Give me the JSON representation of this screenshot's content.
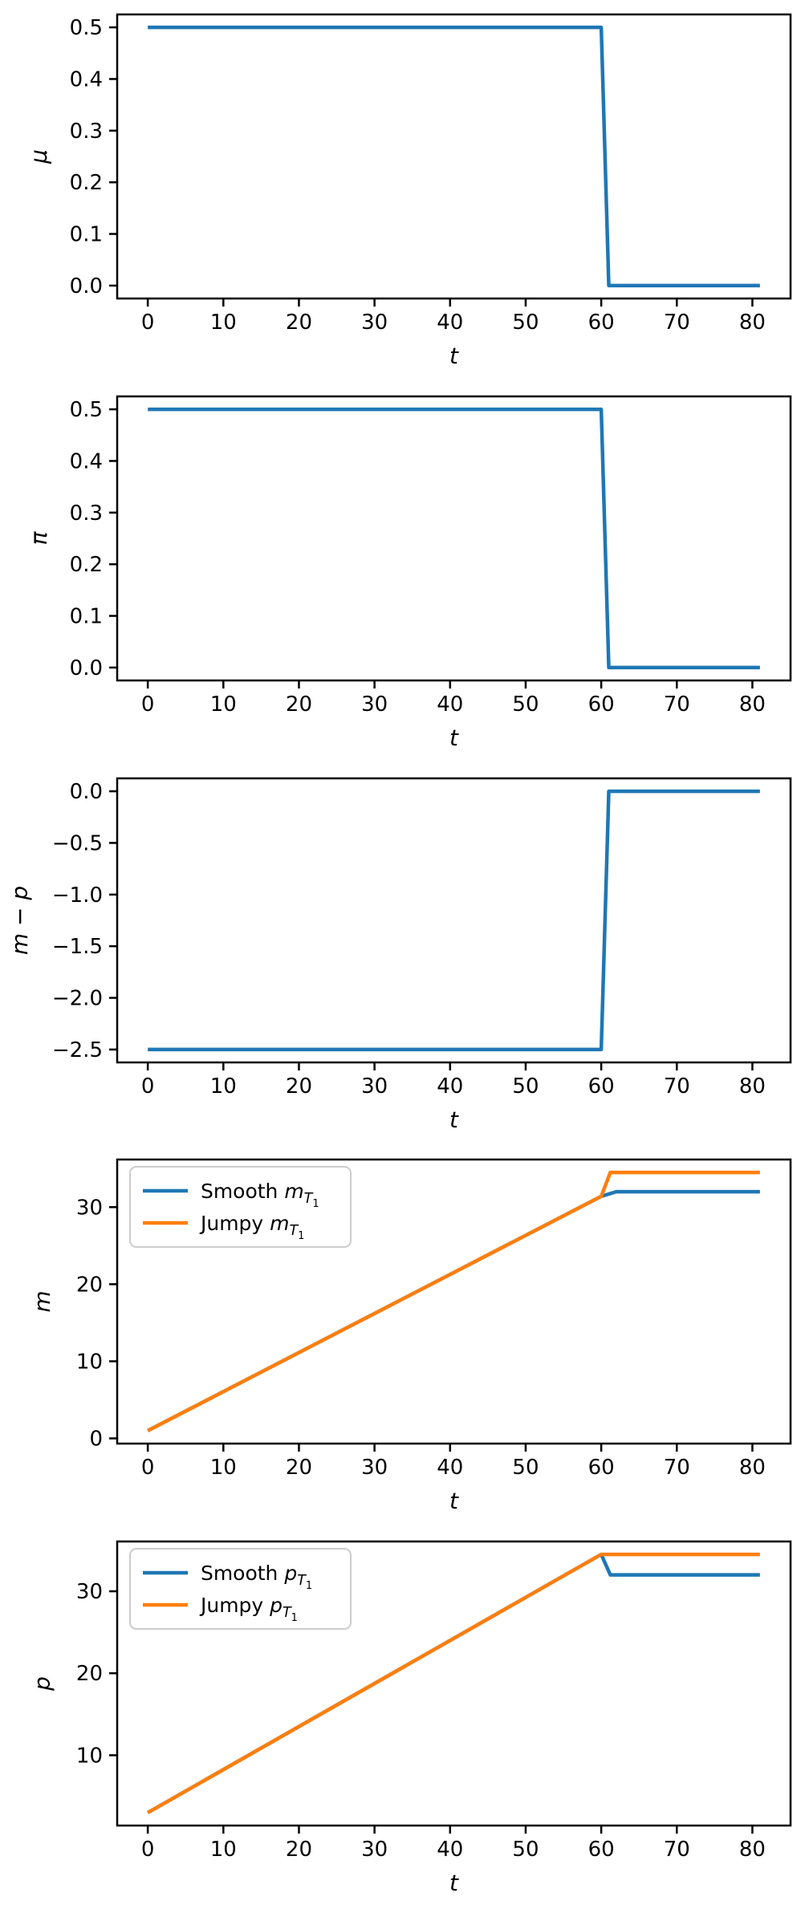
{
  "page": {
    "background": "#ffffff"
  },
  "palette": {
    "blue": "#1f77b4",
    "orange": "#ff7f0e",
    "axis": "#000000",
    "legend_frame": "#cccccc",
    "legend_background": "#ffffff"
  },
  "chart_data": [
    {
      "name": "mu-plot",
      "type": "line",
      "title": "",
      "xlabel": "t",
      "ylabel": "μ",
      "xlim": [
        -4.05,
        85.05
      ],
      "ylim": [
        -0.025,
        0.525
      ],
      "xticks": [
        0,
        10,
        20,
        30,
        40,
        50,
        60,
        70,
        80
      ],
      "xtick_labels": [
        "0",
        "10",
        "20",
        "30",
        "40",
        "50",
        "60",
        "70",
        "80"
      ],
      "yticks": [
        0.0,
        0.1,
        0.2,
        0.3,
        0.4,
        0.5
      ],
      "ytick_labels": [
        "0.0",
        "0.1",
        "0.2",
        "0.3",
        "0.4",
        "0.5"
      ],
      "grid": false,
      "legend": null,
      "series": [
        {
          "name": "mu",
          "label": null,
          "color": "#1f77b4",
          "x": [
            0,
            60,
            61,
            81
          ],
          "y": [
            0.5,
            0.5,
            0.0,
            0.0
          ]
        }
      ]
    },
    {
      "name": "pi-plot",
      "type": "line",
      "title": "",
      "xlabel": "t",
      "ylabel": "π",
      "xlim": [
        -4.05,
        85.05
      ],
      "ylim": [
        -0.025,
        0.525
      ],
      "xticks": [
        0,
        10,
        20,
        30,
        40,
        50,
        60,
        70,
        80
      ],
      "xtick_labels": [
        "0",
        "10",
        "20",
        "30",
        "40",
        "50",
        "60",
        "70",
        "80"
      ],
      "yticks": [
        0.0,
        0.1,
        0.2,
        0.3,
        0.4,
        0.5
      ],
      "ytick_labels": [
        "0.0",
        "0.1",
        "0.2",
        "0.3",
        "0.4",
        "0.5"
      ],
      "grid": false,
      "legend": null,
      "series": [
        {
          "name": "pi",
          "label": null,
          "color": "#1f77b4",
          "x": [
            0,
            60,
            61,
            81
          ],
          "y": [
            0.5,
            0.5,
            0.0,
            0.0
          ]
        }
      ]
    },
    {
      "name": "m-minus-p-plot",
      "type": "line",
      "title": "",
      "xlabel": "t",
      "ylabel": "m − p",
      "xlim": [
        -4.05,
        85.05
      ],
      "ylim": [
        -2.625,
        0.125
      ],
      "xticks": [
        0,
        10,
        20,
        30,
        40,
        50,
        60,
        70,
        80
      ],
      "xtick_labels": [
        "0",
        "10",
        "20",
        "30",
        "40",
        "50",
        "60",
        "70",
        "80"
      ],
      "yticks": [
        0.0,
        -0.5,
        -1.0,
        -1.5,
        -2.0,
        -2.5
      ],
      "ytick_labels": [
        "0.0",
        "−0.5",
        "−1.0",
        "−1.5",
        "−2.0",
        "−2.5"
      ],
      "grid": false,
      "legend": null,
      "series": [
        {
          "name": "m-minus-p",
          "label": null,
          "color": "#1f77b4",
          "x": [
            0,
            60,
            61,
            81
          ],
          "y": [
            -2.5,
            -2.5,
            0.0,
            0.0
          ]
        }
      ]
    },
    {
      "name": "m-plot",
      "type": "line",
      "title": "",
      "xlabel": "t",
      "ylabel": "m",
      "xlim": [
        -4.05,
        85.05
      ],
      "ylim": [
        -0.675,
        36.175
      ],
      "xticks": [
        0,
        10,
        20,
        30,
        40,
        50,
        60,
        70,
        80
      ],
      "xtick_labels": [
        "0",
        "10",
        "20",
        "30",
        "40",
        "50",
        "60",
        "70",
        "80"
      ],
      "yticks": [
        0,
        10,
        20,
        30
      ],
      "ytick_labels": [
        "0",
        "10",
        "20",
        "30"
      ],
      "grid": false,
      "legend": {
        "position": "upper-left",
        "frame_color": "#cccccc",
        "background": "#ffffff"
      },
      "series": [
        {
          "name": "smooth-m",
          "label": "Smooth m_{T_1}",
          "label_parts": {
            "prefix": "Smooth ",
            "var": "m",
            "sub": "T",
            "subsub": "1"
          },
          "color": "#1f77b4",
          "x": [
            0,
            60,
            62,
            81
          ],
          "y": [
            1.0,
            31.4,
            32.0,
            32.0
          ]
        },
        {
          "name": "jumpy-m",
          "label": "Jumpy m_{T_1}",
          "label_parts": {
            "prefix": "Jumpy ",
            "var": "m",
            "sub": "T",
            "subsub": "1"
          },
          "color": "#ff7f0e",
          "x": [
            0,
            60,
            61.2,
            81
          ],
          "y": [
            1.0,
            31.4,
            34.5,
            34.5
          ]
        }
      ]
    },
    {
      "name": "p-plot",
      "type": "line",
      "title": "",
      "xlabel": "t",
      "ylabel": "p",
      "xlim": [
        -4.05,
        85.05
      ],
      "ylim": [
        1.425,
        36.075
      ],
      "xticks": [
        0,
        10,
        20,
        30,
        40,
        50,
        60,
        70,
        80
      ],
      "xtick_labels": [
        "0",
        "10",
        "20",
        "30",
        "40",
        "50",
        "60",
        "70",
        "80"
      ],
      "yticks": [
        10,
        20,
        30
      ],
      "ytick_labels": [
        "10",
        "20",
        "30"
      ],
      "grid": false,
      "legend": {
        "position": "upper-left",
        "frame_color": "#cccccc",
        "background": "#ffffff"
      },
      "series": [
        {
          "name": "smooth-p",
          "label": "Smooth p_{T_1}",
          "label_parts": {
            "prefix": "Smooth ",
            "var": "p",
            "sub": "T",
            "subsub": "1"
          },
          "color": "#1f77b4",
          "x": [
            0,
            60,
            61.2,
            81
          ],
          "y": [
            3.0,
            34.5,
            32.0,
            32.0
          ]
        },
        {
          "name": "jumpy-p",
          "label": "Jumpy p_{T_1}",
          "label_parts": {
            "prefix": "Jumpy ",
            "var": "p",
            "sub": "T",
            "subsub": "1"
          },
          "color": "#ff7f0e",
          "x": [
            0,
            60,
            81
          ],
          "y": [
            3.0,
            34.5,
            34.5
          ]
        }
      ]
    }
  ]
}
